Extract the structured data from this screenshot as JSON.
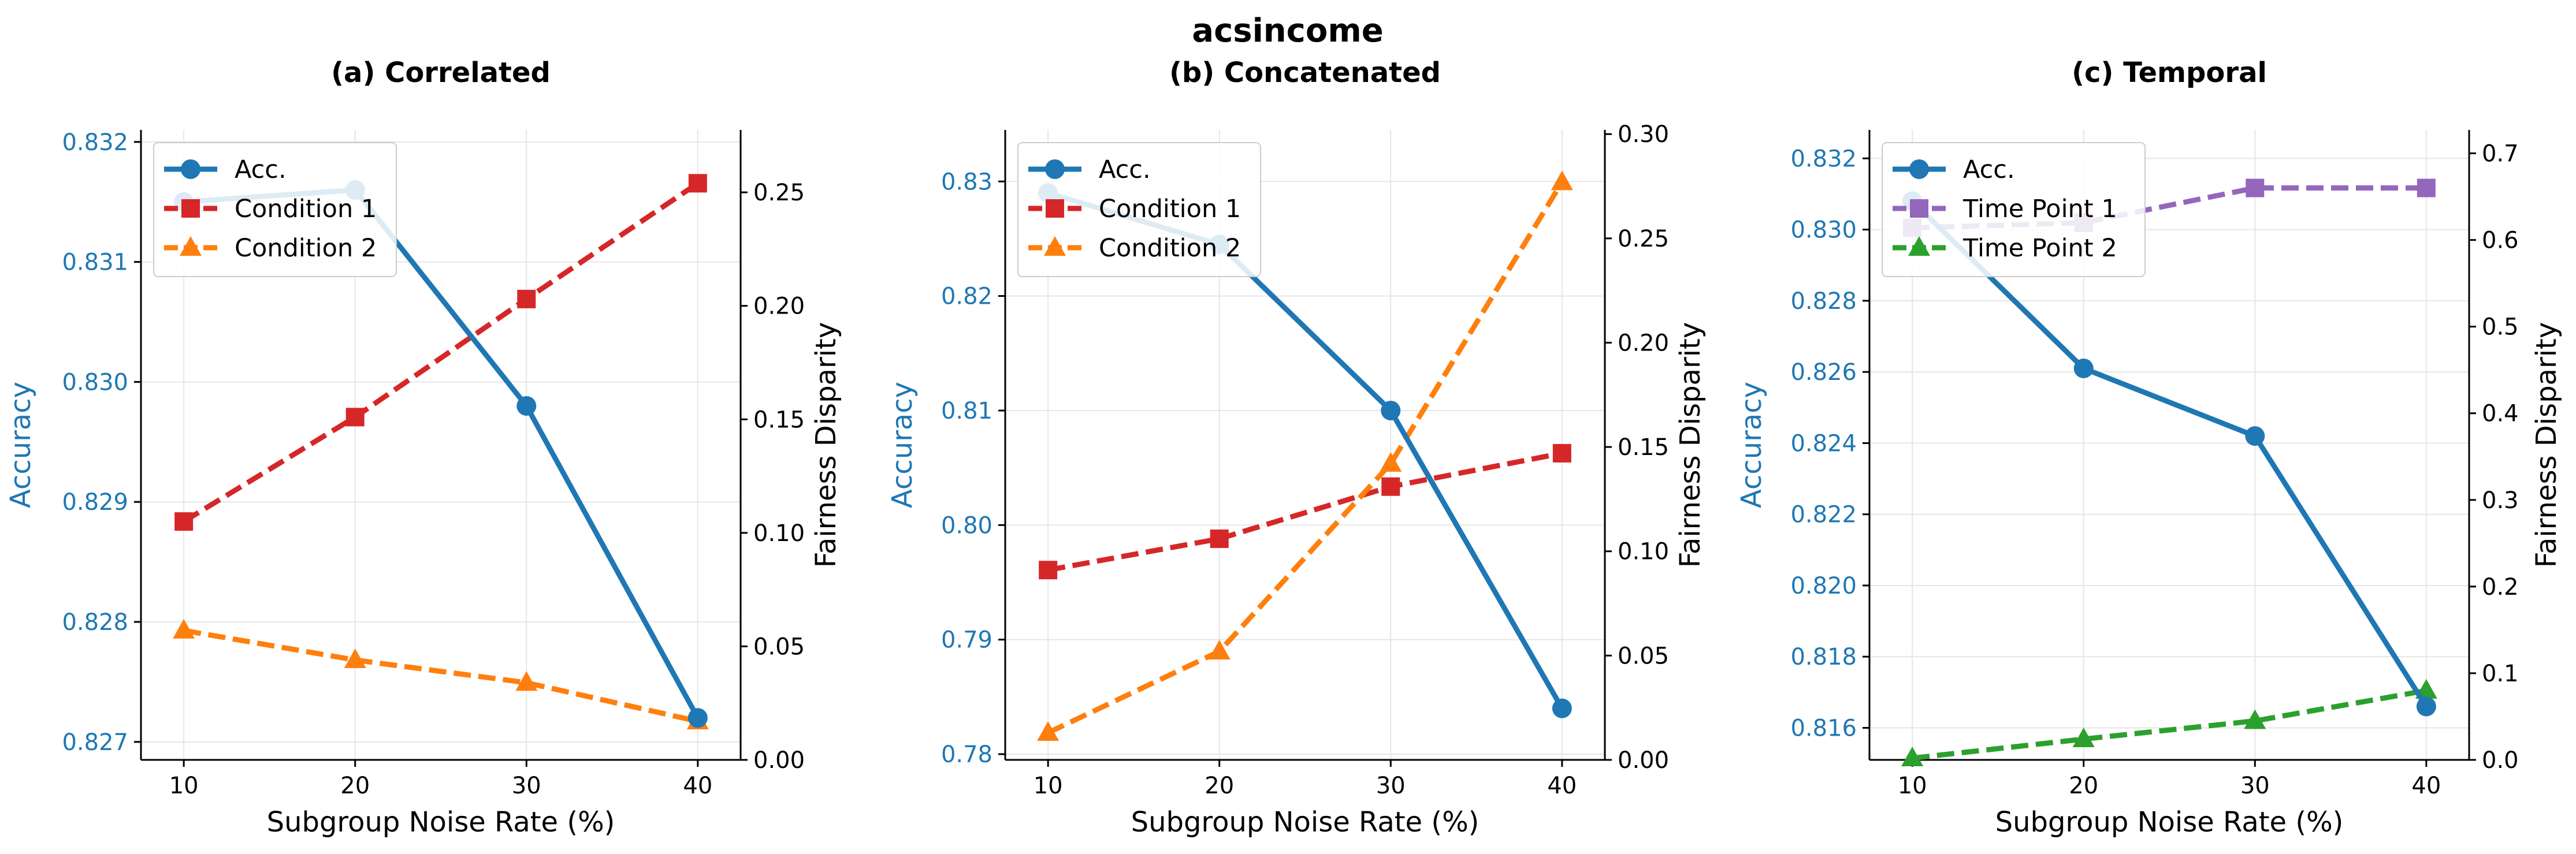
{
  "figure_title": "acsincome",
  "chart_data": [
    {
      "type": "line",
      "title": "(a) Correlated",
      "xlabel": "Subgroup Noise Rate (%)",
      "ylabel_left": "Accuracy",
      "ylabel_right": "Fairness Disparity",
      "x": [
        10,
        20,
        30,
        40
      ],
      "x_ticks": [
        "10",
        "20",
        "30",
        "40"
      ],
      "xlim": [
        7.5,
        42.5
      ],
      "ylim_left": [
        0.82685,
        0.8321
      ],
      "ylim_right": [
        0.0,
        0.2775
      ],
      "yticks_left": [
        "0.827",
        "0.828",
        "0.829",
        "0.830",
        "0.831",
        "0.832"
      ],
      "yticks_left_vals": [
        0.827,
        0.828,
        0.829,
        0.83,
        0.831,
        0.832
      ],
      "yticks_right": [
        "0.00",
        "0.05",
        "0.10",
        "0.15",
        "0.20",
        "0.25"
      ],
      "yticks_right_vals": [
        0.0,
        0.05,
        0.1,
        0.15,
        0.2,
        0.25
      ],
      "grid": true,
      "legend_position": "top-left",
      "series": [
        {
          "name": "Acc.",
          "axis": "left",
          "values": [
            0.8315,
            0.8316,
            0.8298,
            0.8272
          ],
          "color": "#1f77b4",
          "marker": "circle",
          "dash": "solid"
        },
        {
          "name": "Condition 1",
          "axis": "right",
          "values": [
            0.105,
            0.151,
            0.203,
            0.254
          ],
          "color": "#d62728",
          "marker": "square",
          "dash": "dashed"
        },
        {
          "name": "Condition 2",
          "axis": "right",
          "values": [
            0.057,
            0.044,
            0.034,
            0.017
          ],
          "color": "#ff7f0e",
          "marker": "triangle",
          "dash": "dashed"
        }
      ]
    },
    {
      "type": "line",
      "title": "(b) Concatenated",
      "xlabel": "Subgroup Noise Rate (%)",
      "ylabel_left": "Accuracy",
      "ylabel_right": "Fairness Disparity",
      "x": [
        10,
        20,
        30,
        40
      ],
      "x_ticks": [
        "10",
        "20",
        "30",
        "40"
      ],
      "xlim": [
        7.5,
        42.5
      ],
      "ylim_left": [
        0.7795,
        0.8345
      ],
      "ylim_right": [
        0.0,
        0.302
      ],
      "yticks_left": [
        "0.78",
        "0.79",
        "0.80",
        "0.81",
        "0.82",
        "0.83"
      ],
      "yticks_left_vals": [
        0.78,
        0.79,
        0.8,
        0.81,
        0.82,
        0.83
      ],
      "yticks_right": [
        "0.00",
        "0.05",
        "0.10",
        "0.15",
        "0.20",
        "0.25",
        "0.30"
      ],
      "yticks_right_vals": [
        0.0,
        0.05,
        0.1,
        0.15,
        0.2,
        0.25,
        0.3
      ],
      "grid": true,
      "legend_position": "top-left",
      "series": [
        {
          "name": "Acc.",
          "axis": "left",
          "values": [
            0.829,
            0.8245,
            0.81,
            0.784
          ],
          "color": "#1f77b4",
          "marker": "circle",
          "dash": "solid"
        },
        {
          "name": "Condition 1",
          "axis": "right",
          "values": [
            0.091,
            0.106,
            0.131,
            0.147
          ],
          "color": "#d62728",
          "marker": "square",
          "dash": "dashed"
        },
        {
          "name": "Condition 2",
          "axis": "right",
          "values": [
            0.013,
            0.052,
            0.142,
            0.277
          ],
          "color": "#ff7f0e",
          "marker": "triangle",
          "dash": "dashed"
        }
      ]
    },
    {
      "type": "line",
      "title": "(c) Temporal",
      "xlabel": "Subgroup Noise Rate (%)",
      "ylabel_left": "Accuracy",
      "ylabel_right": "Fairness Disparity",
      "x": [
        10,
        20,
        30,
        40
      ],
      "x_ticks": [
        "10",
        "20",
        "30",
        "40"
      ],
      "xlim": [
        7.5,
        42.5
      ],
      "ylim_left": [
        0.8151,
        0.8328
      ],
      "ylim_right": [
        0.0,
        0.727
      ],
      "yticks_left": [
        "0.816",
        "0.818",
        "0.820",
        "0.822",
        "0.824",
        "0.826",
        "0.828",
        "0.830",
        "0.832"
      ],
      "yticks_left_vals": [
        0.816,
        0.818,
        0.82,
        0.822,
        0.824,
        0.826,
        0.828,
        0.83,
        0.832
      ],
      "yticks_right": [
        "0.0",
        "0.1",
        "0.2",
        "0.3",
        "0.4",
        "0.5",
        "0.6",
        "0.7"
      ],
      "yticks_right_vals": [
        0.0,
        0.1,
        0.2,
        0.3,
        0.4,
        0.5,
        0.6,
        0.7
      ],
      "grid": true,
      "legend_position": "top-left",
      "series": [
        {
          "name": "Acc.",
          "axis": "left",
          "values": [
            0.8308,
            0.8261,
            0.8242,
            0.8166
          ],
          "color": "#1f77b4",
          "marker": "circle",
          "dash": "solid"
        },
        {
          "name": "Time Point 1",
          "axis": "right",
          "values": [
            0.614,
            0.62,
            0.66,
            0.66
          ],
          "color": "#9467bd",
          "marker": "square",
          "dash": "dashed"
        },
        {
          "name": "Time Point 2",
          "axis": "right",
          "values": [
            0.002,
            0.024,
            0.045,
            0.08
          ],
          "color": "#2ca02c",
          "marker": "triangle",
          "dash": "dashed"
        }
      ]
    }
  ]
}
